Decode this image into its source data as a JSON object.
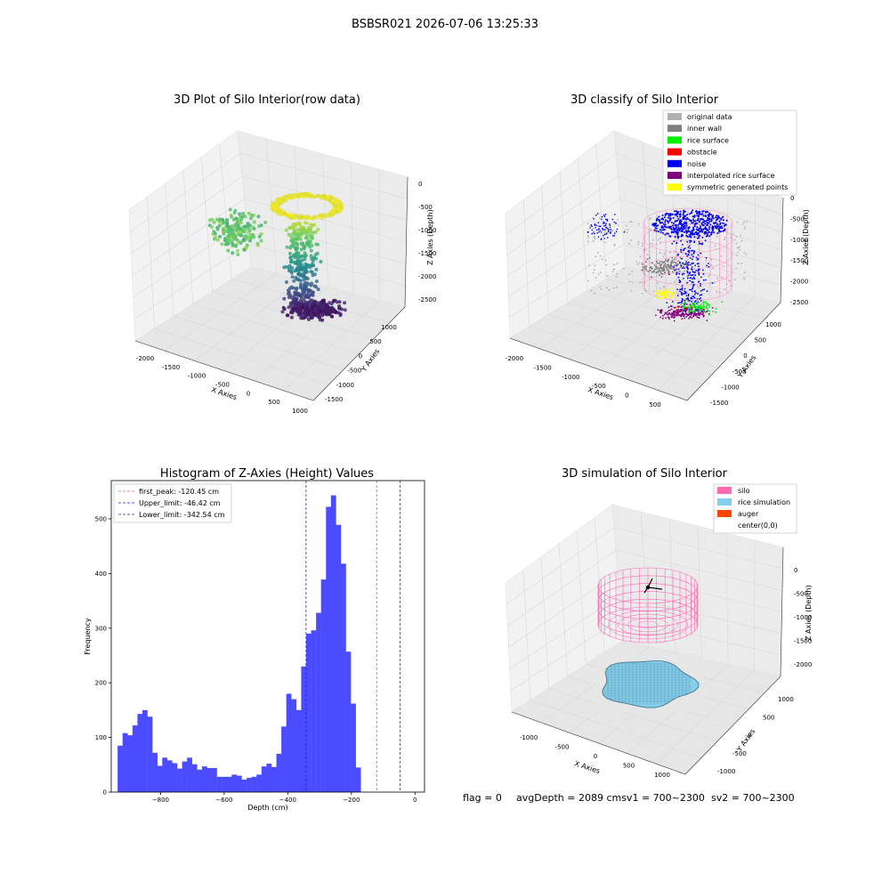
{
  "figure_title": "BSBSR021 2026-07-06 13:25:33",
  "footer": {
    "flag": "flag = 0",
    "avg_depth": "avgDepth = 2089 cmsv1 = 700~2300",
    "sv2": "sv2 = 700~2300"
  },
  "colors": {
    "histogram_bar": "#4b4bff",
    "first_peak": "#ff4d4d",
    "limits": "#1f1fd1",
    "original_data": "#b0b0b0",
    "inner_wall": "#808080",
    "rice_surface": "#00ee00",
    "obstacle": "#ff0000",
    "noise": "#0000ee",
    "interpolated_rice_surface": "#800080",
    "symmetric_generated_points": "#ffff00",
    "silo": "#ff69b4",
    "rice_simulation": "#87ceeb",
    "auger": "#ff4500"
  },
  "chart_data": [
    {
      "type": "scatter3d",
      "title": "3D Plot of Silo Interior(row data)",
      "xlabel": "X Axies",
      "ylabel": "Y Axies",
      "zlabel": "Z Axies (Depth)",
      "xticks": [
        "-2000",
        "-1500",
        "-1000",
        "-500",
        "0",
        "500",
        "1000"
      ],
      "yticks": [
        "1000",
        "500",
        "0",
        "-500",
        "-1000",
        "-1500"
      ],
      "zticks": [
        "0",
        "-500",
        "-1000",
        "-1500",
        "-2000",
        "-2500"
      ],
      "colormap": "viridis"
    },
    {
      "type": "scatter3d",
      "title": "3D classify of Silo Interior",
      "xlabel": "X Axies",
      "ylabel": "Y Axies",
      "zlabel": "Z Axies (Depth)",
      "xticks": [
        "-2000",
        "-1500",
        "-1000",
        "-500",
        "0",
        "500"
      ],
      "yticks": [
        "1000",
        "500",
        "0",
        "-500",
        "-1000",
        "-1500"
      ],
      "zticks": [
        "0",
        "-500",
        "-1000",
        "-1500",
        "-2000",
        "-2500"
      ],
      "legend": [
        "original data",
        "inner wall",
        "rice surface",
        "obstacle",
        "noise",
        "interpolated rice surface",
        "symmetric generated points"
      ],
      "legend_position": "top-right"
    },
    {
      "type": "bar",
      "title": "Histogram of Z-Axies (Height) Values",
      "xlabel": "Depth (cm)",
      "ylabel": "Frequency",
      "xlim": [
        -955,
        30
      ],
      "ylim": [
        0,
        570
      ],
      "xticks": [
        -800,
        -600,
        -400,
        -200,
        0
      ],
      "yticks": [
        0,
        100,
        200,
        300,
        400,
        500
      ],
      "bin_start": -935,
      "bin_width": 15.6,
      "values": [
        85,
        108,
        104,
        122,
        143,
        150,
        138,
        72,
        48,
        63,
        58,
        53,
        43,
        56,
        63,
        51,
        41,
        47,
        44,
        44,
        28,
        28,
        28,
        32,
        30,
        23,
        26,
        28,
        32,
        47,
        52,
        46,
        70,
        120,
        180,
        170,
        150,
        230,
        290,
        296,
        328,
        389,
        522,
        543,
        489,
        418,
        257,
        162,
        45
      ],
      "lines": [
        {
          "label": "first_peak: -120.45 cm",
          "x": -120.45,
          "color": "red"
        },
        {
          "label": "Upper_limit: -46.42 cm",
          "x": -46.42,
          "color": "blue"
        },
        {
          "label": "Lower_limit: -342.54 cm",
          "x": -342.54,
          "color": "blue"
        }
      ],
      "legend_position": "top-left"
    },
    {
      "type": "surface3d",
      "title": "3D simulation of Silo Interior",
      "xlabel": "X Axies",
      "ylabel": "Y Axies",
      "zlabel": "Z Axies (Depth)",
      "xticks": [
        "-1000",
        "-500",
        "0",
        "500",
        "1000"
      ],
      "yticks": [
        "1000",
        "500",
        "0",
        "-500",
        "-1000"
      ],
      "zticks": [
        "0",
        "-500",
        "-1000",
        "-1500",
        "-2000"
      ],
      "legend": [
        "silo",
        "rice simulation",
        "auger",
        "center(0,0)"
      ],
      "legend_position": "top-right"
    }
  ]
}
